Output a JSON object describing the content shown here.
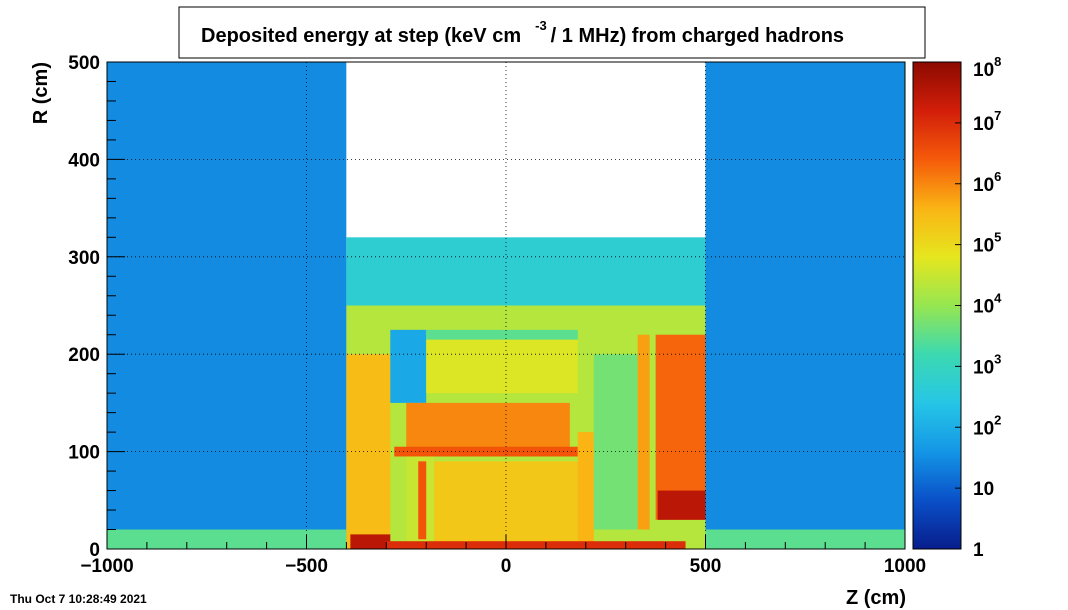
{
  "chart_data": {
    "type": "heatmap",
    "title": {
      "prefix": "Deposited energy at step (keV cm",
      "exponent": "-3",
      "suffix": "/ 1 MHz)  from   charged hadrons"
    },
    "xlabel": "Z (cm)",
    "ylabel": "R (cm)",
    "xlim": [
      -1000,
      1000
    ],
    "ylim": [
      0,
      500
    ],
    "x_ticks": [
      -1000,
      -500,
      0,
      500,
      1000
    ],
    "x_tick_labels": [
      "−1000",
      "−500",
      "0",
      "500",
      "1000"
    ],
    "y_ticks": [
      0,
      100,
      200,
      300,
      400,
      500
    ],
    "y_tick_labels": [
      "0",
      "100",
      "200",
      "300",
      "400",
      "500"
    ],
    "grid": true,
    "colorbar": {
      "scale": "log",
      "range": [
        1,
        100000000
      ],
      "labels": [
        {
          "value": 1,
          "base": "1",
          "exp": ""
        },
        {
          "value": 10,
          "base": "10",
          "exp": ""
        },
        {
          "value": 100,
          "base": "10",
          "exp": "2"
        },
        {
          "value": 1000,
          "base": "10",
          "exp": "3"
        },
        {
          "value": 10000,
          "base": "10",
          "exp": "4"
        },
        {
          "value": 100000,
          "base": "10",
          "exp": "5"
        },
        {
          "value": 1000000,
          "base": "10",
          "exp": "6"
        },
        {
          "value": 10000000,
          "base": "10",
          "exp": "7"
        },
        {
          "value": 100000000,
          "base": "10",
          "exp": "8"
        }
      ],
      "colors": [
        "#081d8c",
        "#0a50c8",
        "#1496e6",
        "#26c6e6",
        "#3cd9b0",
        "#96e650",
        "#e6e61e",
        "#fab414",
        "#f55a0a",
        "#d21e0a",
        "#8c0a00"
      ]
    },
    "regions": [
      {
        "z": [
          -1000,
          -400
        ],
        "r": [
          0,
          500
        ],
        "value": 30
      },
      {
        "z": [
          500,
          1000
        ],
        "r": [
          0,
          500
        ],
        "value": 30
      },
      {
        "z": [
          -1000,
          -400
        ],
        "r": [
          0,
          20
        ],
        "value": 3000
      },
      {
        "z": [
          500,
          1000
        ],
        "r": [
          0,
          20
        ],
        "value": 3000
      },
      {
        "z": [
          -400,
          500
        ],
        "r": [
          300,
          500
        ],
        "value": 0
      },
      {
        "z": [
          -400,
          500
        ],
        "r": [
          250,
          320
        ],
        "value": 500
      },
      {
        "z": [
          -400,
          500
        ],
        "r": [
          0,
          250
        ],
        "value": 20000
      },
      {
        "z": [
          -400,
          -290
        ],
        "r": [
          0,
          200
        ],
        "value": 300000
      },
      {
        "z": [
          -390,
          -290
        ],
        "r": [
          0,
          15
        ],
        "value": 30000000
      },
      {
        "z": [
          -290,
          -200
        ],
        "r": [
          150,
          225
        ],
        "value": 80
      },
      {
        "z": [
          -200,
          180
        ],
        "r": [
          160,
          215
        ],
        "value": 50000
      },
      {
        "z": [
          -200,
          180
        ],
        "r": [
          215,
          225
        ],
        "value": 3000
      },
      {
        "z": [
          -250,
          160
        ],
        "r": [
          100,
          150
        ],
        "value": 1000000
      },
      {
        "z": [
          -280,
          180
        ],
        "r": [
          95,
          105
        ],
        "value": 3000000
      },
      {
        "z": [
          -250,
          -180
        ],
        "r": [
          0,
          95
        ],
        "value": 30000
      },
      {
        "z": [
          -220,
          -200
        ],
        "r": [
          10,
          90
        ],
        "value": 3000000
      },
      {
        "z": [
          -180,
          180
        ],
        "r": [
          0,
          90
        ],
        "value": 200000
      },
      {
        "z": [
          180,
          220
        ],
        "r": [
          0,
          120
        ],
        "value": 400000
      },
      {
        "z": [
          220,
          330
        ],
        "r": [
          20,
          200
        ],
        "value": 5000
      },
      {
        "z": [
          330,
          360
        ],
        "r": [
          20,
          220
        ],
        "value": 600000
      },
      {
        "z": [
          375,
          500
        ],
        "r": [
          30,
          220
        ],
        "value": 2000000
      },
      {
        "z": [
          380,
          500
        ],
        "r": [
          30,
          60
        ],
        "value": 30000000
      },
      {
        "z": [
          -300,
          450
        ],
        "r": [
          0,
          8
        ],
        "value": 10000000
      }
    ]
  },
  "timestamp": "Thu Oct  7 10:28:49 2021"
}
